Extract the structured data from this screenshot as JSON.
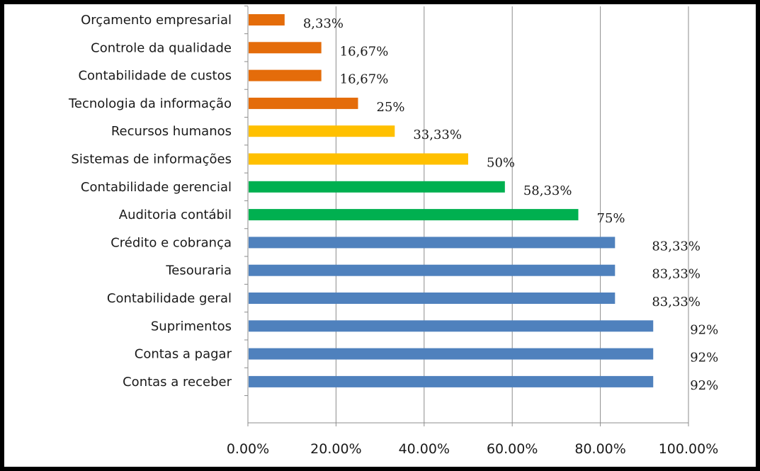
{
  "chart_data": {
    "type": "bar",
    "orientation": "horizontal",
    "categories": [
      "Orçamento empresarial",
      "Controle da qualidade",
      "Contabilidade de custos",
      "Tecnologia da informação",
      "Recursos humanos",
      "Sistemas de informações",
      "Contabilidade gerencial",
      "Auditoria contábil",
      "Crédito e cobrança",
      "Tesouraria",
      "Contabilidade geral",
      "Suprimentos",
      "Contas a pagar",
      "Contas a receber"
    ],
    "values": [
      8.33,
      16.67,
      16.67,
      25,
      33.33,
      50,
      58.33,
      75,
      83.33,
      83.33,
      83.33,
      92,
      92,
      92
    ],
    "data_labels": [
      "8,33%",
      "16,67%",
      "16,67%",
      "25%",
      "33,33%",
      "50%",
      "58,33%",
      "75%",
      "83,33%",
      "83,33%",
      "83,33%",
      "92%",
      "92%",
      "92%"
    ],
    "colors": [
      "#E46C0A",
      "#E46C0A",
      "#E46C0A",
      "#E46C0A",
      "#FFC000",
      "#FFC000",
      "#00B050",
      "#00B050",
      "#4F81BD",
      "#4F81BD",
      "#4F81BD",
      "#4F81BD",
      "#4F81BD",
      "#4F81BD"
    ],
    "xlim": [
      0,
      100
    ],
    "xticks": [
      0,
      20,
      40,
      60,
      80,
      100
    ],
    "xtick_labels": [
      "0.00%",
      "20.00%",
      "40.00%",
      "60.00%",
      "80.00%",
      "100.00%"
    ],
    "grid": "vertical",
    "title": "",
    "xlabel": "",
    "ylabel": ""
  }
}
